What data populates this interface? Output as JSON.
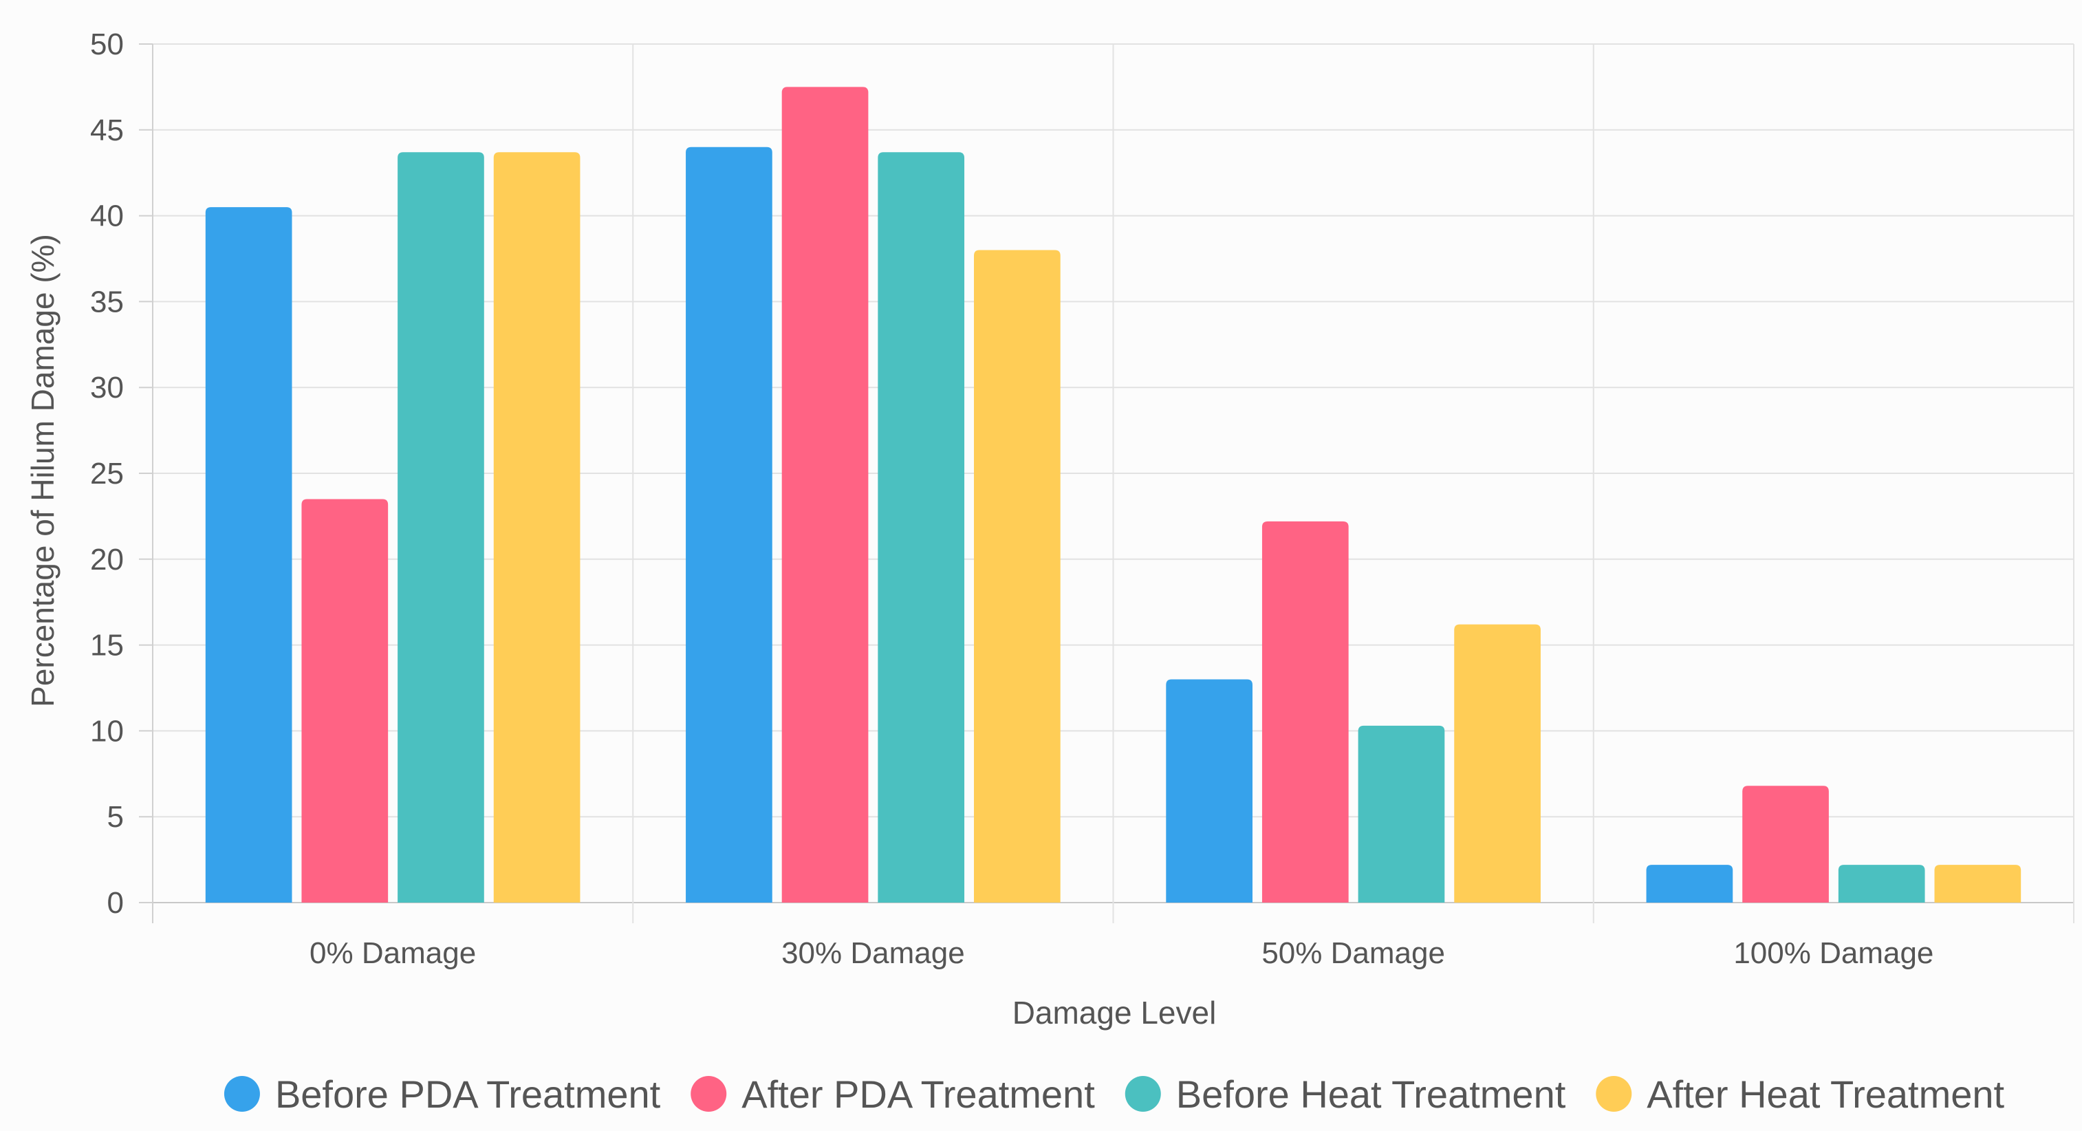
{
  "chart_data": {
    "type": "bar",
    "title": "",
    "xlabel": "Damage Level",
    "ylabel": "Percentage of Hilum Damage (%)",
    "ylim": [
      0,
      50
    ],
    "yticks": [
      0,
      5,
      10,
      15,
      20,
      25,
      30,
      35,
      40,
      45,
      50
    ],
    "grid": true,
    "legend_position": "bottom",
    "categories": [
      "0% Damage",
      "30% Damage",
      "50% Damage",
      "100% Damage"
    ],
    "series": [
      {
        "name": "Before PDA Treatment",
        "color": "#36a2eb",
        "values": [
          40.5,
          44.0,
          13.0,
          2.2
        ]
      },
      {
        "name": "After PDA Treatment",
        "color": "#ff6384",
        "values": [
          23.5,
          47.5,
          22.2,
          6.8
        ]
      },
      {
        "name": "Before Heat Treatment",
        "color": "#4bc0c0",
        "values": [
          43.7,
          43.7,
          10.3,
          2.2
        ]
      },
      {
        "name": "After Heat Treatment",
        "color": "#ffcd56",
        "values": [
          43.7,
          38.0,
          16.2,
          2.2
        ]
      }
    ]
  }
}
